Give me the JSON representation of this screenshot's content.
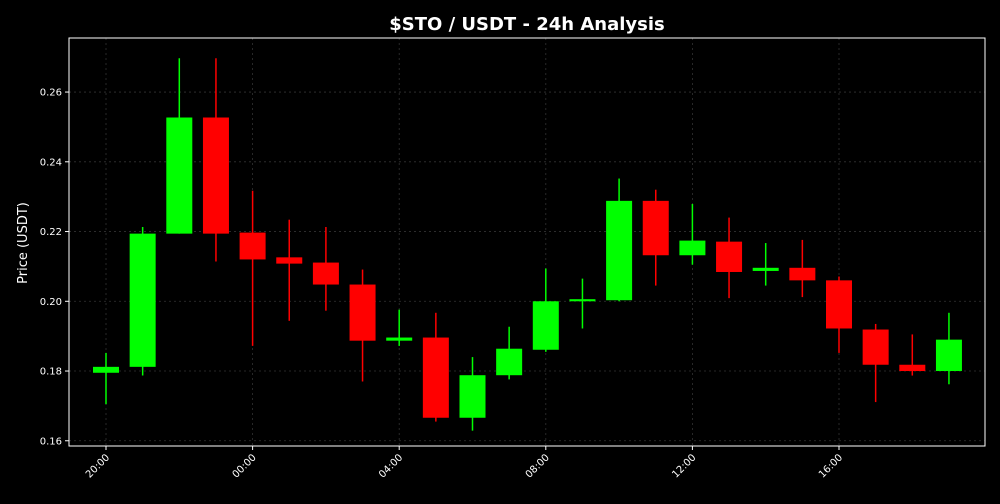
{
  "chart_data": {
    "type": "candlestick",
    "title": "$STO / USDT - 24h Analysis",
    "xlabel": "",
    "ylabel": "Price (USDT)",
    "ylim": [
      0.1585,
      0.2755
    ],
    "grid": true,
    "x_tick_labels": [
      "20:00",
      "00:00",
      "04:00",
      "08:00",
      "12:00",
      "16:00"
    ],
    "x_tick_hours": [
      20,
      24,
      28,
      32,
      36,
      40
    ],
    "y_ticks": [
      0.16,
      0.18,
      0.2,
      0.22,
      0.24,
      0.26
    ],
    "y_tick_labels": [
      "0.16",
      "0.18",
      "0.20",
      "0.22",
      "0.24",
      "0.26"
    ],
    "colors": {
      "up": "#00ff00",
      "down": "#ff0000",
      "background": "#000000",
      "frame": "#ffffff",
      "text": "#ffffff"
    },
    "candles": [
      {
        "time": "20:00",
        "open": 0.1795,
        "high": 0.1852,
        "low": 0.1705,
        "close": 0.1812
      },
      {
        "time": "21:00",
        "open": 0.1812,
        "high": 0.2213,
        "low": 0.1787,
        "close": 0.2194
      },
      {
        "time": "22:00",
        "open": 0.2194,
        "high": 0.2697,
        "low": 0.2194,
        "close": 0.2527
      },
      {
        "time": "23:00",
        "open": 0.2527,
        "high": 0.2697,
        "low": 0.2114,
        "close": 0.2194
      },
      {
        "time": "00:00",
        "open": 0.2197,
        "high": 0.2317,
        "low": 0.1872,
        "close": 0.212
      },
      {
        "time": "01:00",
        "open": 0.2126,
        "high": 0.2234,
        "low": 0.1944,
        "close": 0.2108
      },
      {
        "time": "02:00",
        "open": 0.2111,
        "high": 0.2213,
        "low": 0.1973,
        "close": 0.2048
      },
      {
        "time": "03:00",
        "open": 0.2048,
        "high": 0.2091,
        "low": 0.177,
        "close": 0.1887
      },
      {
        "time": "04:00",
        "open": 0.1887,
        "high": 0.1976,
        "low": 0.1872,
        "close": 0.1896
      },
      {
        "time": "05:00",
        "open": 0.1896,
        "high": 0.1967,
        "low": 0.1655,
        "close": 0.1666
      },
      {
        "time": "06:00",
        "open": 0.1666,
        "high": 0.184,
        "low": 0.1629,
        "close": 0.1788
      },
      {
        "time": "07:00",
        "open": 0.1788,
        "high": 0.1927,
        "low": 0.1776,
        "close": 0.1864
      },
      {
        "time": "08:00",
        "open": 0.1861,
        "high": 0.2094,
        "low": 0.1855,
        "close": 0.2
      },
      {
        "time": "09:00",
        "open": 0.2,
        "high": 0.2065,
        "low": 0.1922,
        "close": 0.2006
      },
      {
        "time": "10:00",
        "open": 0.2003,
        "high": 0.2352,
        "low": 0.2,
        "close": 0.2288
      },
      {
        "time": "11:00",
        "open": 0.2288,
        "high": 0.232,
        "low": 0.2045,
        "close": 0.2132
      },
      {
        "time": "12:00",
        "open": 0.2132,
        "high": 0.2279,
        "low": 0.2105,
        "close": 0.2174
      },
      {
        "time": "13:00",
        "open": 0.2171,
        "high": 0.224,
        "low": 0.2009,
        "close": 0.2084
      },
      {
        "time": "14:00",
        "open": 0.2087,
        "high": 0.2167,
        "low": 0.2045,
        "close": 0.2096
      },
      {
        "time": "15:00",
        "open": 0.2096,
        "high": 0.2176,
        "low": 0.2012,
        "close": 0.206
      },
      {
        "time": "16:00",
        "open": 0.206,
        "high": 0.2071,
        "low": 0.1852,
        "close": 0.1922
      },
      {
        "time": "17:00",
        "open": 0.1919,
        "high": 0.1935,
        "low": 0.1711,
        "close": 0.1818
      },
      {
        "time": "18:00",
        "open": 0.1818,
        "high": 0.1905,
        "low": 0.1787,
        "close": 0.18
      },
      {
        "time": "19:00",
        "open": 0.18,
        "high": 0.1967,
        "low": 0.1762,
        "close": 0.189
      }
    ]
  }
}
